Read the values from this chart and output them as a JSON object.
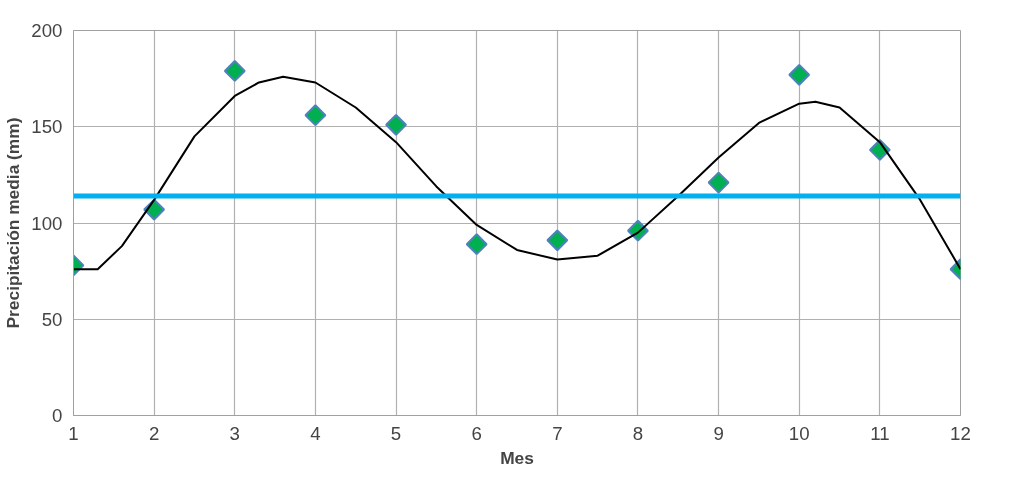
{
  "chart_data": {
    "type": "scatter",
    "xlabel": "Mes",
    "ylabel": "Precipitación media (mm)",
    "xlim": [
      1,
      12
    ],
    "xticks": [
      1,
      2,
      3,
      4,
      5,
      6,
      7,
      8,
      9,
      10,
      11,
      12
    ],
    "ylim": [
      0,
      200
    ],
    "yticks": [
      0,
      50,
      100,
      150,
      200
    ],
    "grid": true,
    "series": [
      {
        "marker": "diamond",
        "color": "#00b050",
        "x": [
          1,
          2,
          3,
          4,
          5,
          6,
          7,
          8,
          9,
          10,
          11,
          12
        ],
        "values": [
          78,
          107,
          179,
          156,
          151,
          89,
          91,
          96,
          121,
          177,
          138,
          76
        ]
      },
      {
        "type": "line",
        "marker": "none",
        "color": "#000000",
        "x": [
          1,
          1.3,
          1.6,
          2,
          2.5,
          3,
          3.3,
          3.6,
          4,
          4.5,
          5,
          5.5,
          6,
          6.5,
          7,
          7.5,
          8,
          8.5,
          9,
          9.5,
          10,
          10.2,
          10.5,
          11,
          11.5,
          12
        ],
        "values": [
          76,
          76,
          88,
          112,
          145,
          166,
          173,
          176,
          173,
          160,
          142,
          119,
          99,
          86,
          81,
          83,
          95,
          114,
          134,
          152,
          162,
          163,
          160,
          142,
          112,
          76
        ]
      }
    ],
    "ref_lines": [
      {
        "axis": "y",
        "value": 114,
        "color": "#00b0f0"
      }
    ]
  }
}
